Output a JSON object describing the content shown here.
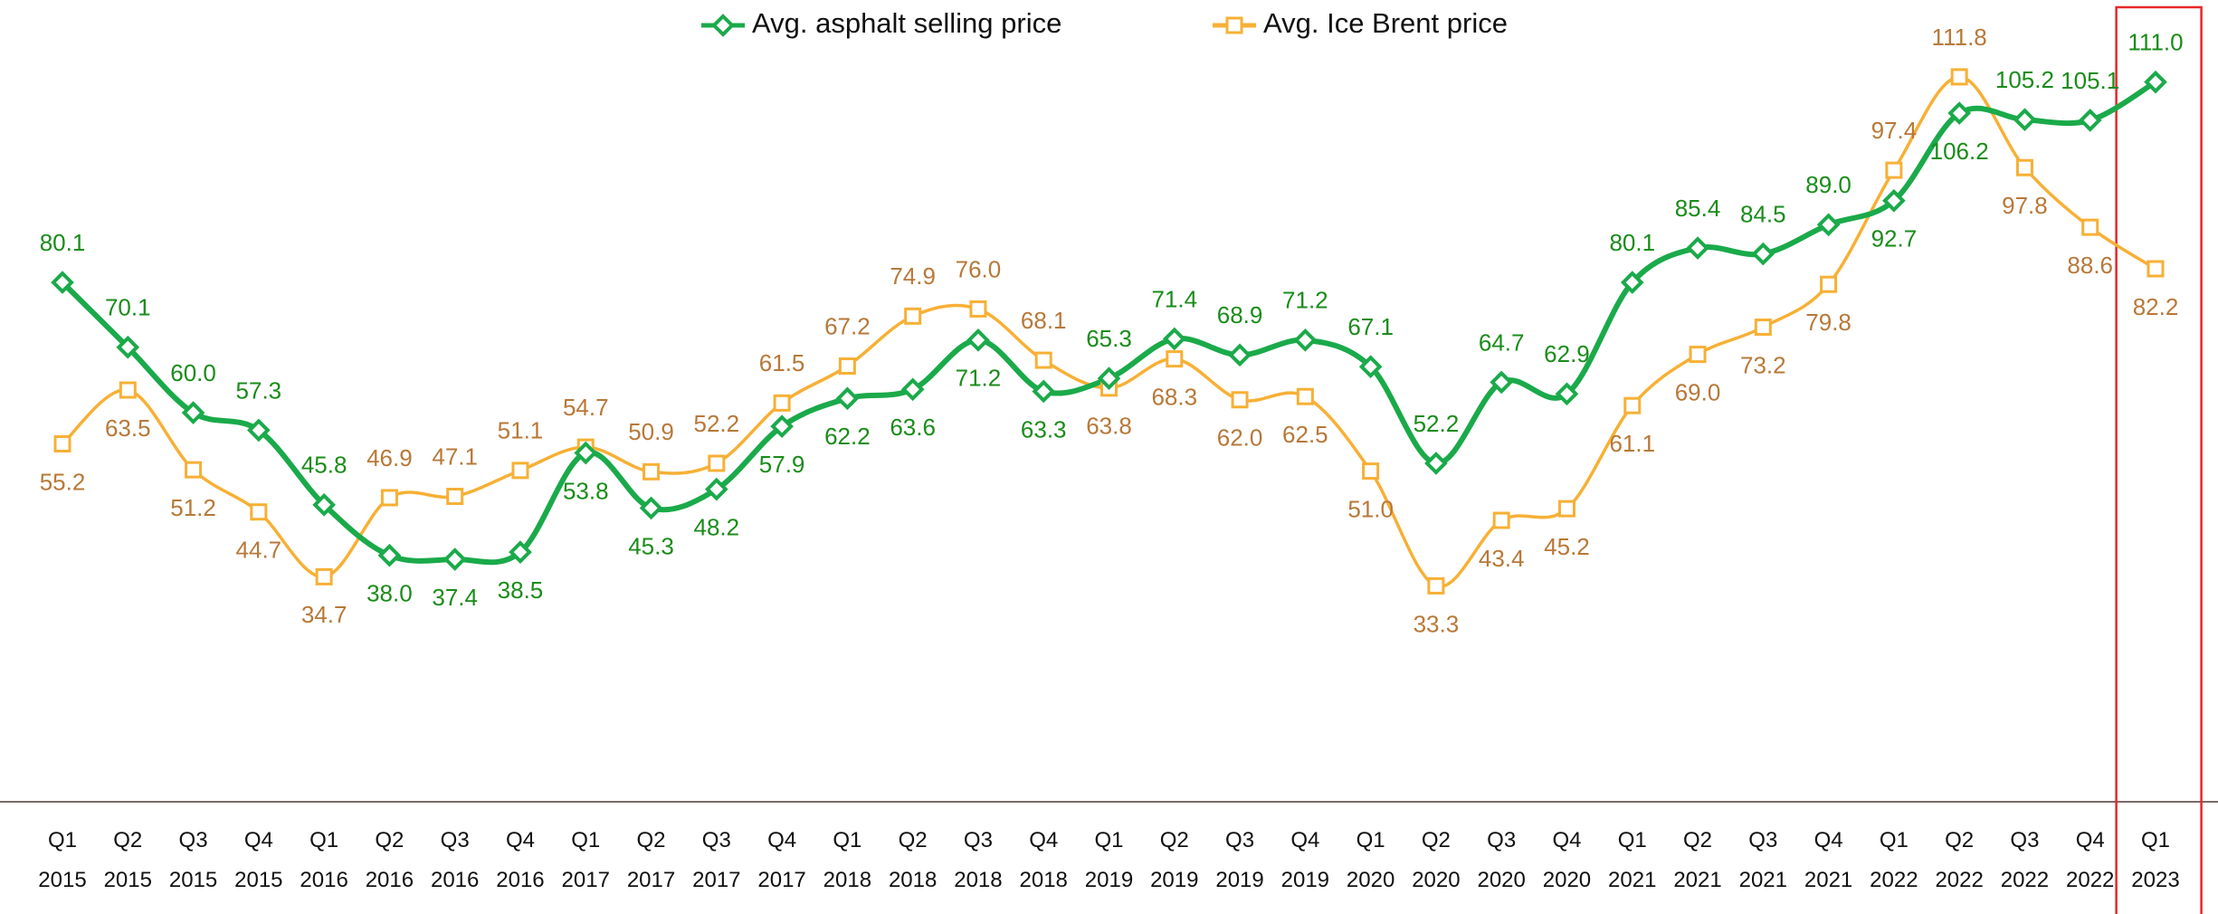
{
  "chart_data": {
    "type": "line",
    "categories": [
      [
        "Q1",
        "2015"
      ],
      [
        "Q2",
        "2015"
      ],
      [
        "Q3",
        "2015"
      ],
      [
        "Q4",
        "2015"
      ],
      [
        "Q1",
        "2016"
      ],
      [
        "Q2",
        "2016"
      ],
      [
        "Q3",
        "2016"
      ],
      [
        "Q4",
        "2016"
      ],
      [
        "Q1",
        "2017"
      ],
      [
        "Q2",
        "2017"
      ],
      [
        "Q3",
        "2017"
      ],
      [
        "Q4",
        "2017"
      ],
      [
        "Q1",
        "2018"
      ],
      [
        "Q2",
        "2018"
      ],
      [
        "Q3",
        "2018"
      ],
      [
        "Q4",
        "2018"
      ],
      [
        "Q1",
        "2019"
      ],
      [
        "Q2",
        "2019"
      ],
      [
        "Q3",
        "2019"
      ],
      [
        "Q4",
        "2019"
      ],
      [
        "Q1",
        "2020"
      ],
      [
        "Q2",
        "2020"
      ],
      [
        "Q3",
        "2020"
      ],
      [
        "Q4",
        "2020"
      ],
      [
        "Q1",
        "2021"
      ],
      [
        "Q2",
        "2021"
      ],
      [
        "Q3",
        "2021"
      ],
      [
        "Q4",
        "2021"
      ],
      [
        "Q1",
        "2022"
      ],
      [
        "Q2",
        "2022"
      ],
      [
        "Q3",
        "2022"
      ],
      [
        "Q4",
        "2022"
      ],
      [
        "Q1",
        "2023"
      ]
    ],
    "series": [
      {
        "name": "Avg. asphalt selling price",
        "color": "#1aaa4a",
        "label_color": "#1a8c1a",
        "marker": "diamond",
        "values": [
          80.1,
          70.1,
          60.0,
          57.3,
          45.8,
          38.0,
          37.4,
          38.5,
          53.8,
          45.3,
          48.2,
          57.9,
          62.2,
          63.6,
          71.2,
          63.3,
          65.3,
          71.4,
          68.9,
          71.2,
          67.1,
          52.2,
          64.7,
          62.9,
          80.1,
          85.4,
          84.5,
          89.0,
          92.7,
          106.2,
          105.2,
          105.1,
          111.0
        ],
        "value_labels": [
          "80.1",
          "70.1",
          "60.0",
          "57.3",
          "45.8",
          "38.0",
          "37.4",
          "38.5",
          "53.8",
          "45.3",
          "48.2",
          "57.9",
          "62.2",
          "63.6",
          "71.2",
          "63.3",
          "65.3",
          "71.4",
          "68.9",
          "71.2",
          "67.1",
          "52.2",
          "64.7",
          "62.9",
          "80.1",
          "85.4",
          "84.5",
          "89.0",
          "92.7",
          "106.2",
          "105.2",
          "105.1",
          "111.0"
        ]
      },
      {
        "name": "Avg. Ice Brent price",
        "color": "#f7b035",
        "label_color": "#b87838",
        "marker": "square",
        "values": [
          55.2,
          63.5,
          51.2,
          44.7,
          34.7,
          46.9,
          47.1,
          51.1,
          54.7,
          50.9,
          52.2,
          61.5,
          67.2,
          74.9,
          76.0,
          68.1,
          63.8,
          68.3,
          62.0,
          62.5,
          51.0,
          33.3,
          43.4,
          45.2,
          61.1,
          69.0,
          73.2,
          79.8,
          97.4,
          111.8,
          97.8,
          88.6,
          82.2
        ],
        "value_labels": [
          "55.2",
          "63.5",
          "51.2",
          "44.7",
          "34.7",
          "46.9",
          "47.1",
          "51.1",
          "54.7",
          "50.9",
          "52.2",
          "61.5",
          "67.2",
          "74.9",
          "76.0",
          "68.1",
          "63.8",
          "68.3",
          "62.0",
          "62.5",
          "51.0",
          "33.3",
          "43.4",
          "45.2",
          "61.1",
          "69.0",
          "73.2",
          "79.8",
          "97.4",
          "111.8",
          "97.8",
          "88.6",
          "82.2"
        ]
      }
    ],
    "ylim": [
      0,
      115
    ],
    "legend": "top",
    "highlight_color": "#e8262a"
  }
}
